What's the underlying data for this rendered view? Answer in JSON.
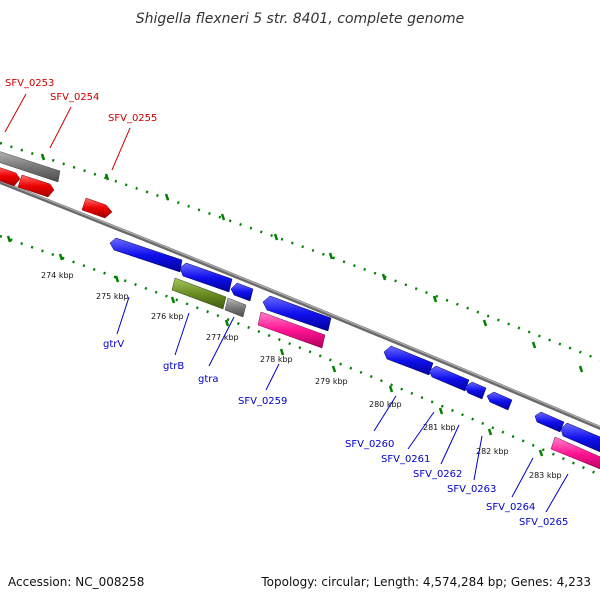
{
  "title": "Shigella flexneri 5 str. 8401, complete genome",
  "footer": {
    "accession": "Accession: NC_008258",
    "topology": "Topology: circular; Length: 4,574,284 bp; Genes: 4,233"
  },
  "colors": {
    "forward_gene": "#ff0000",
    "reverse_gene": "#0000ff",
    "pseudo_gene": "#808080",
    "rna_gene": "#ff1493",
    "olive_gene": "#6b8e23",
    "backbone": "#808080",
    "tick": "#008000",
    "label_red": "#cc0000",
    "label_blue": "#0000cc"
  },
  "scale_labels": [
    "274 kbp",
    "275 kbp",
    "276 kbp",
    "277 kbp",
    "278 kbp",
    "279 kbp",
    "280 kbp",
    "281 kbp",
    "282 kbp",
    "283 kbp"
  ],
  "forward_genes": [
    "SFV_0253",
    "SFV_0254",
    "SFV_0255"
  ],
  "reverse_genes": [
    "gtrV",
    "gtrB",
    "gtra",
    "SFV_0259",
    "SFV_0260",
    "SFV_0261",
    "SFV_0262",
    "SFV_0263",
    "SFV_0264",
    "SFV_0265"
  ]
}
